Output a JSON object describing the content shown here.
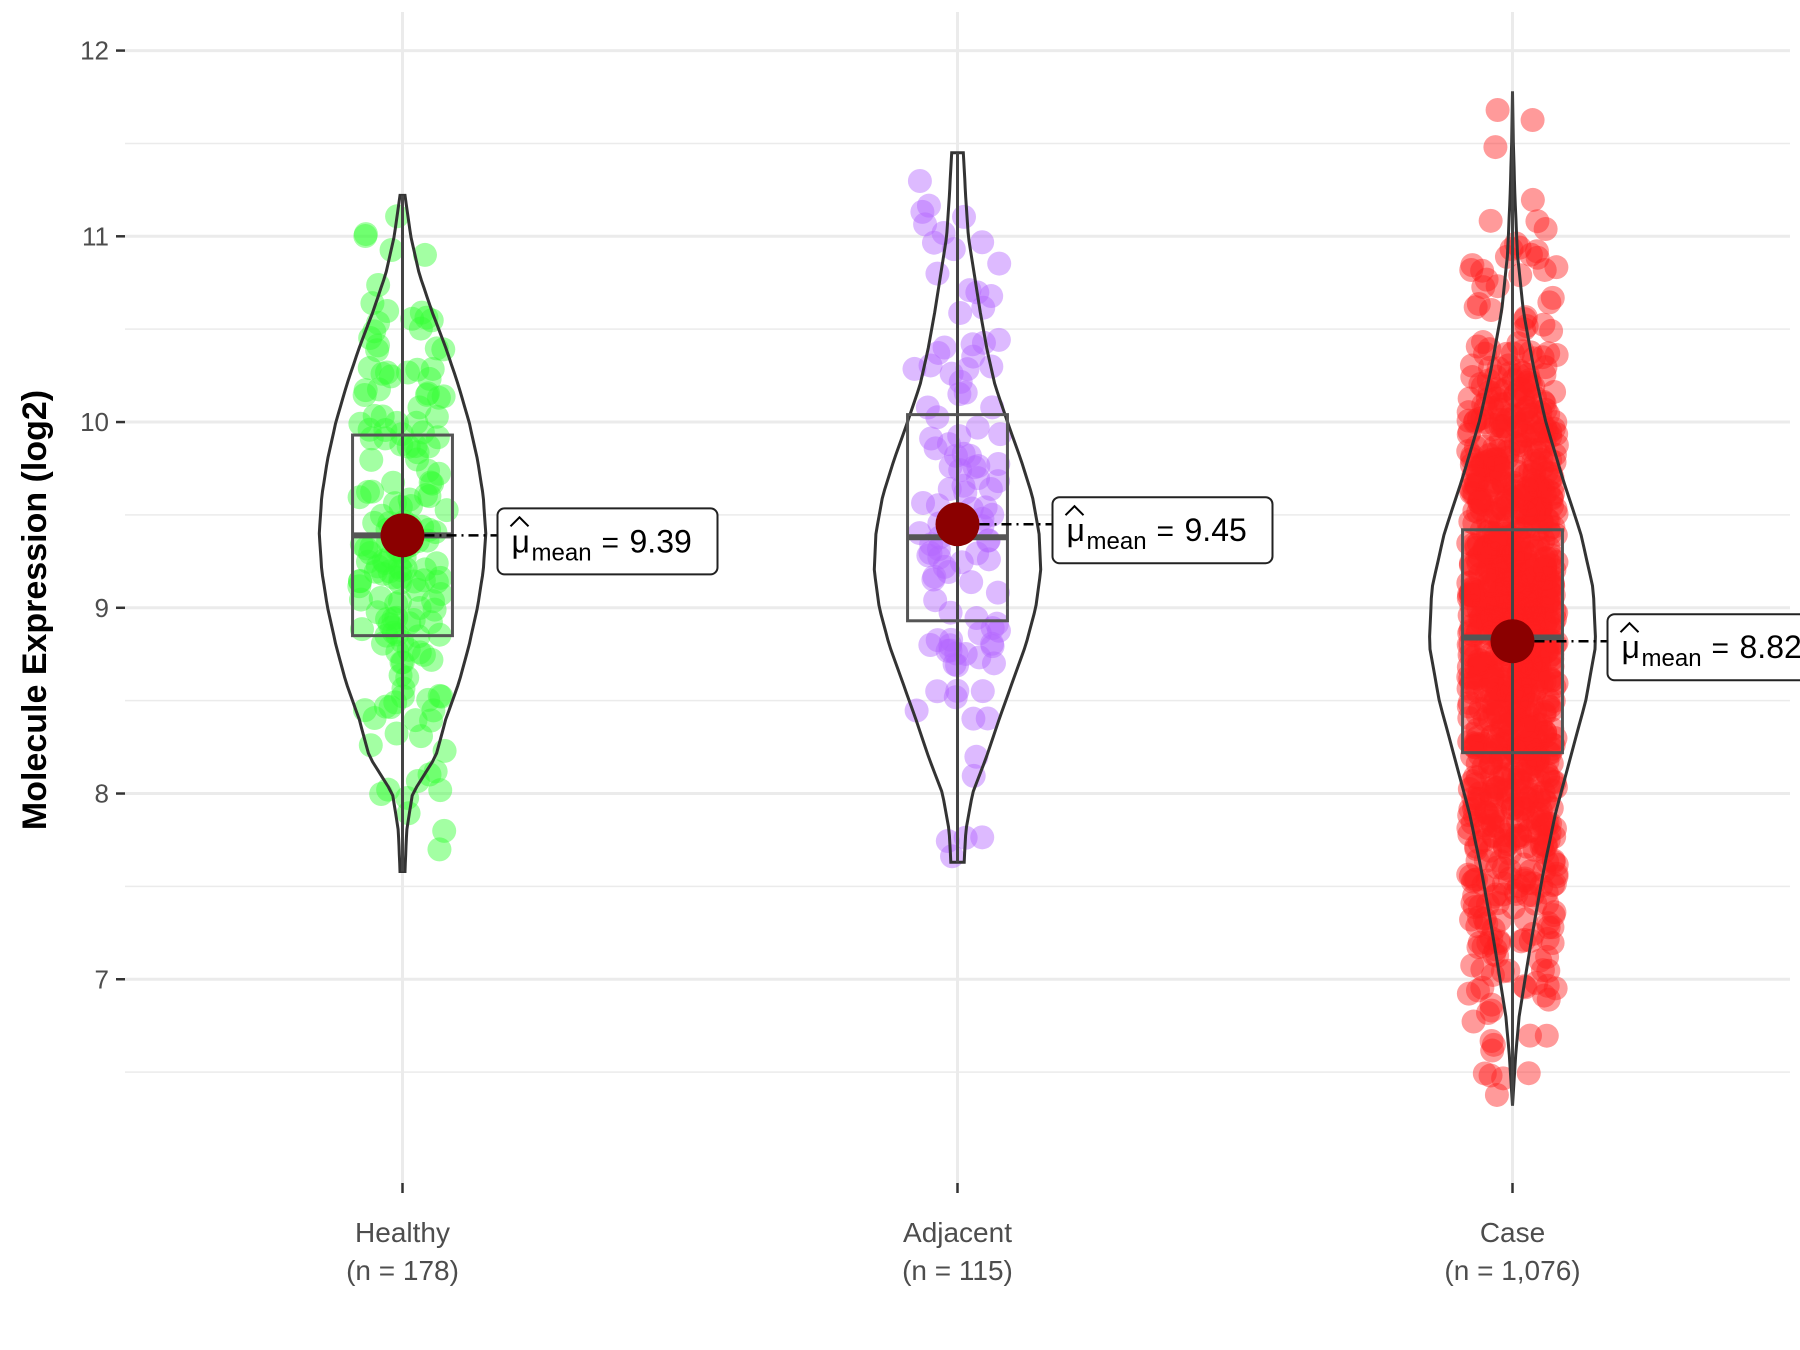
{
  "chart_data": {
    "type": "violin",
    "ylabel": "Molecule Expression (log2)",
    "xlabel": "",
    "ylim": [
      6.0,
      12.1
    ],
    "yticks": [
      7,
      8,
      9,
      10,
      11,
      12
    ],
    "grid": true,
    "legend": "none",
    "mean_label_prefix": "μ",
    "mean_label_subscript": "mean",
    "groups": [
      {
        "name": "Healthy",
        "n_label": "(n = 178)",
        "n": 178,
        "color": "#33ff33",
        "mean": 9.39,
        "mean_label": "9.39",
        "median": 9.39,
        "q1": 8.85,
        "q3": 9.93,
        "min": 7.58,
        "max": 11.22,
        "violin_max_halfwidth": 0.75,
        "violin_profile": [
          [
            7.58,
            0.03
          ],
          [
            7.8,
            0.05
          ],
          [
            8.0,
            0.12
          ],
          [
            8.2,
            0.4
          ],
          [
            8.4,
            0.52
          ],
          [
            8.6,
            0.68
          ],
          [
            8.8,
            0.8
          ],
          [
            9.0,
            0.9
          ],
          [
            9.2,
            0.97
          ],
          [
            9.4,
            1.0
          ],
          [
            9.6,
            0.97
          ],
          [
            9.8,
            0.9
          ],
          [
            10.0,
            0.8
          ],
          [
            10.2,
            0.67
          ],
          [
            10.4,
            0.52
          ],
          [
            10.6,
            0.35
          ],
          [
            10.8,
            0.2
          ],
          [
            11.0,
            0.1
          ],
          [
            11.22,
            0.03
          ]
        ]
      },
      {
        "name": "Adjacent",
        "n_label": "(n = 115)",
        "n": 115,
        "color": "#b366ff",
        "mean": 9.45,
        "mean_label": "9.45",
        "median": 9.38,
        "q1": 8.93,
        "q3": 10.04,
        "min": 7.63,
        "max": 11.45,
        "violin_max_halfwidth": 0.75,
        "violin_profile": [
          [
            7.63,
            0.08
          ],
          [
            7.8,
            0.1
          ],
          [
            8.0,
            0.18
          ],
          [
            8.2,
            0.35
          ],
          [
            8.4,
            0.5
          ],
          [
            8.6,
            0.66
          ],
          [
            8.8,
            0.82
          ],
          [
            9.0,
            0.94
          ],
          [
            9.2,
            1.0
          ],
          [
            9.4,
            0.98
          ],
          [
            9.6,
            0.9
          ],
          [
            9.8,
            0.76
          ],
          [
            10.0,
            0.6
          ],
          [
            10.2,
            0.45
          ],
          [
            10.4,
            0.35
          ],
          [
            10.6,
            0.27
          ],
          [
            10.8,
            0.2
          ],
          [
            11.0,
            0.13
          ],
          [
            11.2,
            0.1
          ],
          [
            11.45,
            0.07
          ]
        ]
      },
      {
        "name": "Case",
        "n_label": "(n = 1,076)",
        "n": 1076,
        "color": "#ff2020",
        "mean": 8.82,
        "mean_label": "8.82",
        "median": 8.84,
        "q1": 8.22,
        "q3": 9.42,
        "min": 6.32,
        "max": 11.78,
        "violin_max_halfwidth": 0.75,
        "violin_profile": [
          [
            6.32,
            0.0
          ],
          [
            6.6,
            0.04
          ],
          [
            6.8,
            0.08
          ],
          [
            7.0,
            0.15
          ],
          [
            7.3,
            0.26
          ],
          [
            7.6,
            0.38
          ],
          [
            7.9,
            0.52
          ],
          [
            8.2,
            0.7
          ],
          [
            8.5,
            0.88
          ],
          [
            8.8,
            1.0
          ],
          [
            9.1,
            0.97
          ],
          [
            9.4,
            0.82
          ],
          [
            9.7,
            0.6
          ],
          [
            10.0,
            0.4
          ],
          [
            10.3,
            0.25
          ],
          [
            10.6,
            0.13
          ],
          [
            10.9,
            0.06
          ],
          [
            11.2,
            0.03
          ],
          [
            11.5,
            0.01
          ],
          [
            11.78,
            0.0
          ]
        ]
      }
    ]
  }
}
